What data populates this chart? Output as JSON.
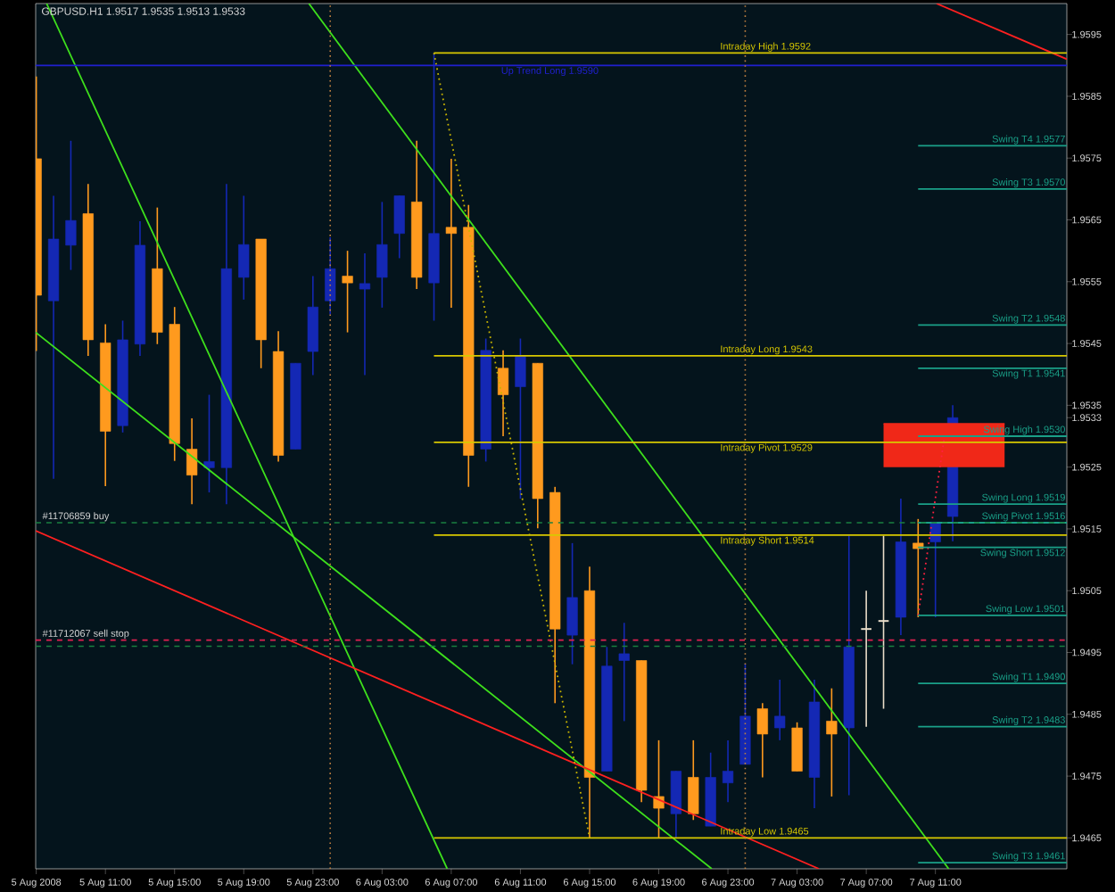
{
  "chart_data": {
    "type": "candlestick",
    "title": "GBPUSD.H1 1.9517 1.9535 1.9513 1.9533",
    "xlim": [
      "2008-08-05T06:58",
      "2008-08-07T18:36"
    ],
    "ylim": [
      1.946,
      1.96
    ],
    "grid": false,
    "xticks": [
      {
        "value": "2008-08-05T07:00",
        "label": "5 Aug 2008"
      },
      {
        "value": "2008-08-05T11:00",
        "label": "5 Aug 11:00"
      },
      {
        "value": "2008-08-05T15:00",
        "label": "5 Aug 15:00"
      },
      {
        "value": "2008-08-05T19:00",
        "label": "5 Aug 19:00"
      },
      {
        "value": "2008-08-05T23:00",
        "label": "5 Aug 23:00"
      },
      {
        "value": "2008-08-06T03:00",
        "label": "6 Aug 03:00"
      },
      {
        "value": "2008-08-06T07:00",
        "label": "6 Aug 07:00"
      },
      {
        "value": "2008-08-06T11:00",
        "label": "6 Aug 11:00"
      },
      {
        "value": "2008-08-06T15:00",
        "label": "6 Aug 15:00"
      },
      {
        "value": "2008-08-06T19:00",
        "label": "6 Aug 19:00"
      },
      {
        "value": "2008-08-06T23:00",
        "label": "6 Aug 23:00"
      },
      {
        "value": "2008-08-07T03:00",
        "label": "7 Aug 03:00"
      },
      {
        "value": "2008-08-07T07:00",
        "label": "7 Aug 07:00"
      },
      {
        "value": "2008-08-07T11:00",
        "label": "7 Aug 11:00"
      }
    ],
    "yticks": [
      1.9465,
      1.9475,
      1.9485,
      1.9495,
      1.9505,
      1.9515,
      1.9525,
      1.9533,
      1.9535,
      1.9545,
      1.9555,
      1.9565,
      1.9575,
      1.9585,
      1.9595
    ],
    "series": [
      {
        "x": [
          "2008-08-05T07:00",
          "2008-08-05T08:00",
          "2008-08-05T09:00",
          "2008-08-05T10:00",
          "2008-08-05T11:00",
          "2008-08-05T12:00",
          "2008-08-05T13:00",
          "2008-08-05T14:00",
          "2008-08-05T15:00",
          "2008-08-05T16:00",
          "2008-08-05T17:00",
          "2008-08-05T18:00",
          "2008-08-05T19:00",
          "2008-08-05T20:00",
          "2008-08-05T21:00",
          "2008-08-05T22:00",
          "2008-08-05T23:00",
          "2008-08-06T00:00",
          "2008-08-06T01:00",
          "2008-08-06T02:00",
          "2008-08-06T03:00",
          "2008-08-06T04:00",
          "2008-08-06T05:00",
          "2008-08-06T06:00",
          "2008-08-06T07:00",
          "2008-08-06T08:00",
          "2008-08-06T09:00",
          "2008-08-06T10:00",
          "2008-08-06T11:00",
          "2008-08-06T12:00",
          "2008-08-06T13:00",
          "2008-08-06T14:00",
          "2008-08-06T15:00",
          "2008-08-06T16:00",
          "2008-08-06T17:00",
          "2008-08-06T18:00",
          "2008-08-06T19:00",
          "2008-08-06T20:00",
          "2008-08-06T21:00",
          "2008-08-06T22:00",
          "2008-08-06T23:00",
          "2008-08-07T00:00",
          "2008-08-07T01:00",
          "2008-08-07T02:00",
          "2008-08-07T03:00",
          "2008-08-07T04:00",
          "2008-08-07T05:00",
          "2008-08-07T06:00",
          "2008-08-07T07:00",
          "2008-08-07T08:00",
          "2008-08-07T09:00",
          "2008-08-07T10:00",
          "2008-08-07T11:00",
          "2008-08-07T12:00"
        ],
        "ohlc": [
          [
            1.95749,
            1.95882,
            1.95438,
            1.95528
          ],
          [
            1.95519,
            1.95689,
            1.95231,
            1.95619
          ],
          [
            1.95609,
            1.95778,
            1.95569,
            1.95649
          ],
          [
            1.9566,
            1.95708,
            1.9543,
            1.95456
          ],
          [
            1.95451,
            1.95481,
            1.95219,
            1.95308
          ],
          [
            1.95317,
            1.95487,
            1.95306,
            1.95456
          ],
          [
            1.95449,
            1.95648,
            1.9543,
            1.95609
          ],
          [
            1.95571,
            1.9567,
            1.95449,
            1.95468
          ],
          [
            1.95481,
            1.95509,
            1.9526,
            1.95288
          ],
          [
            1.95279,
            1.95329,
            1.9519,
            1.95237
          ],
          [
            1.95249,
            1.95367,
            1.95209,
            1.95259
          ],
          [
            1.95249,
            1.95708,
            1.9519,
            1.95571
          ],
          [
            1.95557,
            1.95689,
            1.95521,
            1.9561
          ],
          [
            1.95619,
            1.95619,
            1.9541,
            1.95456
          ],
          [
            1.95437,
            1.9547,
            1.95259,
            1.95269
          ],
          [
            1.95279,
            1.95418,
            1.95279,
            1.95418
          ],
          [
            1.95437,
            1.95559,
            1.95399,
            1.95509
          ],
          [
            1.95519,
            1.95622,
            1.95497,
            1.95571
          ],
          [
            1.95559,
            1.956,
            1.95468,
            1.95548
          ],
          [
            1.95538,
            1.95596,
            1.95399,
            1.95547
          ],
          [
            1.95557,
            1.95679,
            1.95508,
            1.9561
          ],
          [
            1.95628,
            1.95689,
            1.95588,
            1.95689
          ],
          [
            1.95679,
            1.95778,
            1.95538,
            1.95557
          ],
          [
            1.95548,
            1.9592,
            1.95487,
            1.95628
          ],
          [
            1.95638,
            1.95749,
            1.95508,
            1.95628
          ],
          [
            1.95638,
            1.95674,
            1.95218,
            1.95269
          ],
          [
            1.95279,
            1.95458,
            1.95259,
            1.95439
          ],
          [
            1.9541,
            1.95439,
            1.953,
            1.95367
          ],
          [
            1.9538,
            1.95458,
            1.95199,
            1.9543
          ],
          [
            1.95418,
            1.95418,
            1.95151,
            1.95199
          ],
          [
            1.95209,
            1.95218,
            1.94868,
            1.94988
          ],
          [
            1.94978,
            1.95127,
            1.94931,
            1.95039
          ],
          [
            1.9505,
            1.95089,
            1.9465,
            1.94748
          ],
          [
            1.94758,
            1.94959,
            1.94758,
            1.94928
          ],
          [
            1.94937,
            1.94998,
            1.94839,
            1.94948
          ],
          [
            1.94937,
            1.94937,
            1.94708,
            1.94727
          ],
          [
            1.94717,
            1.94808,
            1.9465,
            1.94698
          ],
          [
            1.94689,
            1.94758,
            1.9465,
            1.94758
          ],
          [
            1.94748,
            1.94808,
            1.94679,
            1.94689
          ],
          [
            1.94669,
            1.94788,
            1.94669,
            1.94748
          ],
          [
            1.94739,
            1.94808,
            1.94708,
            1.94758
          ],
          [
            1.94769,
            1.94932,
            1.94769,
            1.94847
          ],
          [
            1.94859,
            1.94868,
            1.94748,
            1.94818
          ],
          [
            1.94828,
            1.94906,
            1.94808,
            1.94847
          ],
          [
            1.94828,
            1.94837,
            1.94758,
            1.94758
          ],
          [
            1.94748,
            1.94906,
            1.94698,
            1.9487
          ],
          [
            1.94839,
            1.94892,
            1.94717,
            1.94818
          ],
          [
            1.94828,
            1.95139,
            1.94719,
            1.94959
          ],
          [
            1.94988,
            1.9505,
            1.9483,
            1.94988
          ],
          [
            1.95001,
            1.95139,
            1.94859,
            1.95001
          ],
          [
            1.95007,
            1.95199,
            1.94978,
            1.95129
          ],
          [
            1.95127,
            1.95166,
            1.95007,
            1.95118
          ],
          [
            1.95129,
            1.95161,
            1.95007,
            1.95161
          ],
          [
            1.9517,
            1.9535,
            1.9513,
            1.9533
          ]
        ],
        "colors": [
          "#ff9a1e",
          "#1428b4",
          "#1428b4",
          "#ff9a1e",
          "#ff9a1e",
          "#1428b4",
          "#1428b4",
          "#ff9a1e",
          "#ff9a1e",
          "#ff9a1e",
          "#1428b4",
          "#1428b4",
          "#1428b4",
          "#ff9a1e",
          "#ff9a1e",
          "#1428b4",
          "#1428b4",
          "#1428b4",
          "#ff9a1e",
          "#1428b4",
          "#1428b4",
          "#1428b4",
          "#ff9a1e",
          "#1428b4",
          "#ff9a1e",
          "#ff9a1e",
          "#1428b4",
          "#ff9a1e",
          "#1428b4",
          "#ff9a1e",
          "#ff9a1e",
          "#1428b4",
          "#ff9a1e",
          "#1428b4",
          "#1428b4",
          "#ff9a1e",
          "#ff9a1e",
          "#1428b4",
          "#ff9a1e",
          "#1428b4",
          "#1428b4",
          "#1428b4",
          "#ff9a1e",
          "#1428b4",
          "#ff9a1e",
          "#1428b4",
          "#ff9a1e",
          "#1428b4",
          "#e8dcc8",
          "#e8dcc8",
          "#1428b4",
          "#ff9a1e",
          "#1428b4",
          "#1428b4"
        ]
      },
      {
        "type": "line",
        "x": [
          "2008-08-07T08:00",
          "2008-08-07T15:00"
        ],
        "values": [
          1.9532,
          1.9532
        ],
        "lower": [
          1.9525,
          1.9525
        ],
        "upper": [
          1.9532,
          1.9532
        ],
        "color": "#f02818"
      },
      {
        "type": "line",
        "x": [
          "2008-08-05T22:46",
          "2008-08-07T11:46"
        ],
        "values": [
          1.96,
          1.946
        ],
        "color": "#3ee01c"
      },
      {
        "type": "line",
        "x": [
          "2008-08-05T07:36",
          "2008-08-06T06:46"
        ],
        "values": [
          1.96,
          1.946
        ],
        "color": "#3ee01c"
      },
      {
        "type": "line",
        "x": [
          "2008-08-05T06:58",
          "2008-08-06T22:04"
        ],
        "values": [
          1.95468,
          1.946
        ],
        "color": "#3ee01c"
      },
      {
        "type": "line",
        "x": [
          "2008-08-05T06:58",
          "2008-08-07T04:16"
        ],
        "values": [
          1.95147,
          1.946
        ],
        "color": "#ff2020"
      },
      {
        "type": "line",
        "x": [
          "2008-08-07T11:04",
          "2008-08-07T18:36"
        ],
        "values": [
          1.96,
          1.9591
        ],
        "color": "#ff2020"
      },
      {
        "type": "line",
        "x": [
          "2008-08-06T06:00",
          "2008-08-06T15:00"
        ],
        "values": [
          1.9592,
          1.9465
        ],
        "color": "#c8b400",
        "line_style": "dotted"
      },
      {
        "type": "line",
        "x": [
          "2008-08-07T10:00",
          "2008-08-07T11:30"
        ],
        "values": [
          1.9501,
          1.95295
        ],
        "color": "#ff2040",
        "line_style": "dotted"
      },
      {
        "type": "line",
        "name": "Up Trend Long 1.9590",
        "x": [
          "2008-08-05T06:58",
          "2008-08-07T18:36"
        ],
        "values": [
          1.959,
          1.959
        ],
        "color": "#2020d0"
      },
      {
        "type": "line",
        "name": "Intraday High 1.9592",
        "x": [
          "2008-08-06T06:00",
          "2008-08-07T18:36"
        ],
        "values": [
          1.9592,
          1.9592
        ],
        "color": "#d8c800"
      },
      {
        "type": "line",
        "name": "Intraday Long 1.9543",
        "x": [
          "2008-08-06T06:00",
          "2008-08-07T18:36"
        ],
        "values": [
          1.9543,
          1.9543
        ],
        "color": "#d8c800"
      },
      {
        "type": "line",
        "name": "Intraday Pivot 1.9529",
        "x": [
          "2008-08-06T06:00",
          "2008-08-07T18:36"
        ],
        "values": [
          1.9529,
          1.9529
        ],
        "color": "#d8c800"
      },
      {
        "type": "line",
        "name": "Intraday Short 1.9514",
        "x": [
          "2008-08-06T06:00",
          "2008-08-07T18:36"
        ],
        "values": [
          1.9514,
          1.9514
        ],
        "color": "#d8c800"
      },
      {
        "type": "line",
        "name": "Intraday Low 1.9465",
        "x": [
          "2008-08-06T06:00",
          "2008-08-07T18:36"
        ],
        "values": [
          1.9465,
          1.9465
        ],
        "color": "#d8c800"
      },
      {
        "type": "line",
        "name": "Swing T4 1.9577",
        "x": [
          "2008-08-07T10:00",
          "2008-08-07T18:36"
        ],
        "values": [
          1.9577,
          1.9577
        ],
        "color": "#1aa088"
      },
      {
        "type": "line",
        "name": "Swing T3 1.9570",
        "x": [
          "2008-08-07T10:00",
          "2008-08-07T18:36"
        ],
        "values": [
          1.957,
          1.957
        ],
        "color": "#1aa088"
      },
      {
        "type": "line",
        "name": "Swing T2 1.9548",
        "x": [
          "2008-08-07T10:00",
          "2008-08-07T18:36"
        ],
        "values": [
          1.9548,
          1.9548
        ],
        "color": "#1aa088"
      },
      {
        "type": "line",
        "name": "Swing T1 1.9541",
        "x": [
          "2008-08-07T10:00",
          "2008-08-07T18:36"
        ],
        "values": [
          1.9541,
          1.9541
        ],
        "color": "#1aa088"
      },
      {
        "type": "line",
        "name": "Swing High 1.9530",
        "x": [
          "2008-08-07T10:00",
          "2008-08-07T18:36"
        ],
        "values": [
          1.953,
          1.953
        ],
        "color": "#1aa088"
      },
      {
        "type": "line",
        "name": "Swing Long 1.9519",
        "x": [
          "2008-08-07T10:00",
          "2008-08-07T18:36"
        ],
        "values": [
          1.9519,
          1.9519
        ],
        "color": "#1aa088"
      },
      {
        "type": "line",
        "name": "Swing Pivot 1.9516",
        "x": [
          "2008-08-07T10:00",
          "2008-08-07T18:36"
        ],
        "values": [
          1.9516,
          1.9516
        ],
        "color": "#1aa088"
      },
      {
        "type": "line",
        "name": "Swing Short 1.9512",
        "x": [
          "2008-08-07T10:00",
          "2008-08-07T18:36"
        ],
        "values": [
          1.9512,
          1.9512
        ],
        "color": "#1aa088"
      },
      {
        "type": "line",
        "name": "Swing Low 1.9501",
        "x": [
          "2008-08-07T10:00",
          "2008-08-07T18:36"
        ],
        "values": [
          1.9501,
          1.9501
        ],
        "color": "#1aa088"
      },
      {
        "type": "line",
        "name": "Swing T1 1.9490",
        "x": [
          "2008-08-07T10:00",
          "2008-08-07T18:36"
        ],
        "values": [
          1.949,
          1.949
        ],
        "color": "#1aa088"
      },
      {
        "type": "line",
        "name": "Swing T2 1.9483",
        "x": [
          "2008-08-07T10:00",
          "2008-08-07T18:36"
        ],
        "values": [
          1.9483,
          1.9483
        ],
        "color": "#1aa088"
      },
      {
        "type": "line",
        "name": "Swing T3 1.9461",
        "x": [
          "2008-08-07T10:00",
          "2008-08-07T18:36"
        ],
        "values": [
          1.9461,
          1.9461
        ],
        "color": "#1aa088"
      }
    ],
    "ref_lines": [
      {
        "axis": "x",
        "value": "2008-08-06T00:00",
        "color": "#c08040",
        "line_style": "dotted"
      },
      {
        "axis": "x",
        "value": "2008-08-07T00:00",
        "color": "#c08040",
        "line_style": "dotted"
      },
      {
        "axis": "y",
        "value": 1.9516,
        "label": "#11706859 buy",
        "color": "#1a8040",
        "line_style": "dashed"
      },
      {
        "axis": "y",
        "value": 1.9497,
        "label": "#11712067 sell stop",
        "color": "#e02050",
        "line_style": "dashed"
      },
      {
        "axis": "y",
        "value": 1.9496,
        "color": "#1a8040",
        "line_style": "dashed"
      }
    ]
  }
}
